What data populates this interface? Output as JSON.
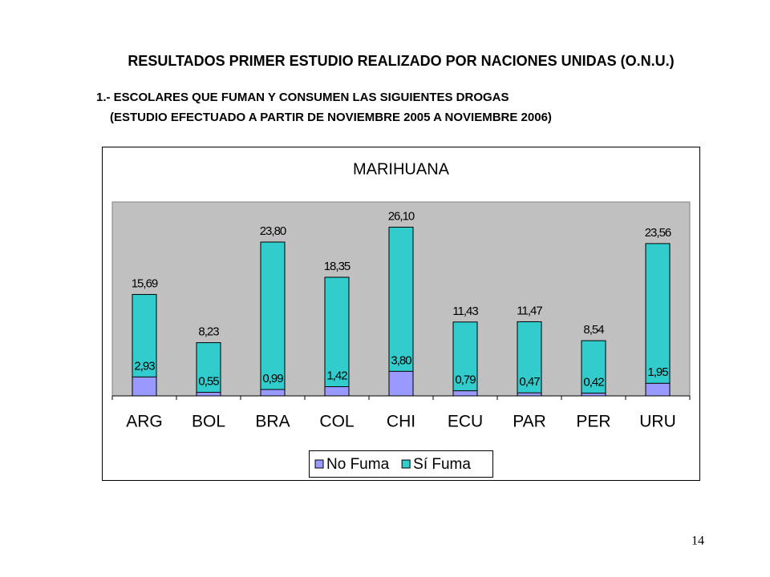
{
  "slide": {
    "heading": "RESULTADOS PRIMER ESTUDIO REALIZADO POR NACIONES UNIDAS (O.N.U.)",
    "subheading": [
      "1.- ESCOLARES QUE FUMAN Y CONSUMEN LAS SIGUIENTES DROGAS",
      "(ESTUDIO EFECTUADO A PARTIR DE NOVIEMBRE 2005 A NOVIEMBRE 2006)"
    ],
    "page_number": "14"
  },
  "chart_data": {
    "type": "bar",
    "title": "MARIHUANA",
    "overlap": true,
    "categories": [
      "ARG",
      "BOL",
      "BRA",
      "COL",
      "CHI",
      "ECU",
      "PAR",
      "PER",
      "URU"
    ],
    "series": [
      {
        "name": "No Fuma",
        "color": "#9999ff",
        "values": [
          2.93,
          0.55,
          0.99,
          1.42,
          3.8,
          0.79,
          0.47,
          0.42,
          1.95
        ],
        "value_labels": [
          "2,93",
          "0,55",
          "0,99",
          "1,42",
          "3,80",
          "0,79",
          "0,47",
          "0,42",
          "1,95"
        ]
      },
      {
        "name": "Sí Fuma",
        "color": "#33cccc",
        "values": [
          15.69,
          8.23,
          23.8,
          18.35,
          26.1,
          11.43,
          11.47,
          8.54,
          23.56
        ],
        "value_labels": [
          "15,69",
          "8,23",
          "23,80",
          "18,35",
          "26,10",
          "11,43",
          "11,47",
          "8,54",
          "23,56"
        ]
      }
    ],
    "ylim": [
      0,
      30
    ],
    "plot_background": "#c0c0c0",
    "legend": "bottom"
  }
}
